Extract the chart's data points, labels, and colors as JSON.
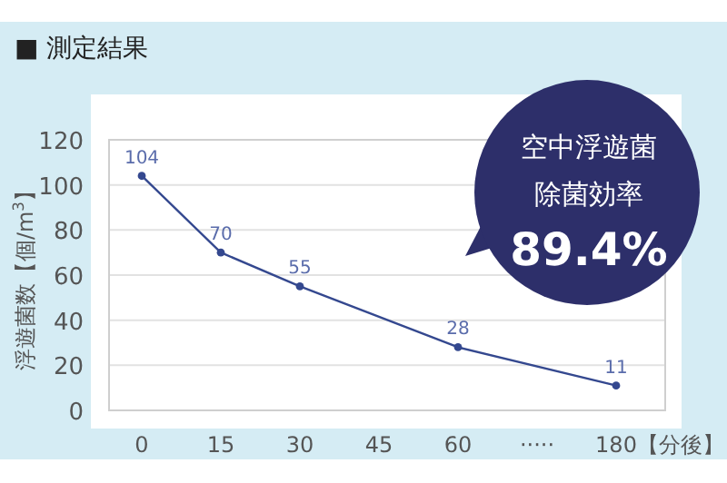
{
  "chart_data": {
    "type": "line",
    "title": "■ 測定結果",
    "ylabel": "浮遊菌数【個/m$^{3}$】",
    "xlabel": "【分後】",
    "categories": [
      "0",
      "15",
      "30",
      "45",
      "60",
      "·····",
      "180"
    ],
    "series": [
      {
        "color": "#34488f",
        "values": [
          104,
          70,
          55,
          null,
          28,
          null,
          11
        ]
      }
    ],
    "ylim": [
      0,
      120
    ],
    "yticks": [
      0,
      20,
      40,
      60,
      80,
      100,
      120
    ],
    "grid": "y",
    "marker": "circle",
    "line_style": "solid",
    "data_labels": true,
    "annotations": [
      "空中浮遊菌",
      "除菌効率",
      "89.4%"
    ]
  }
}
